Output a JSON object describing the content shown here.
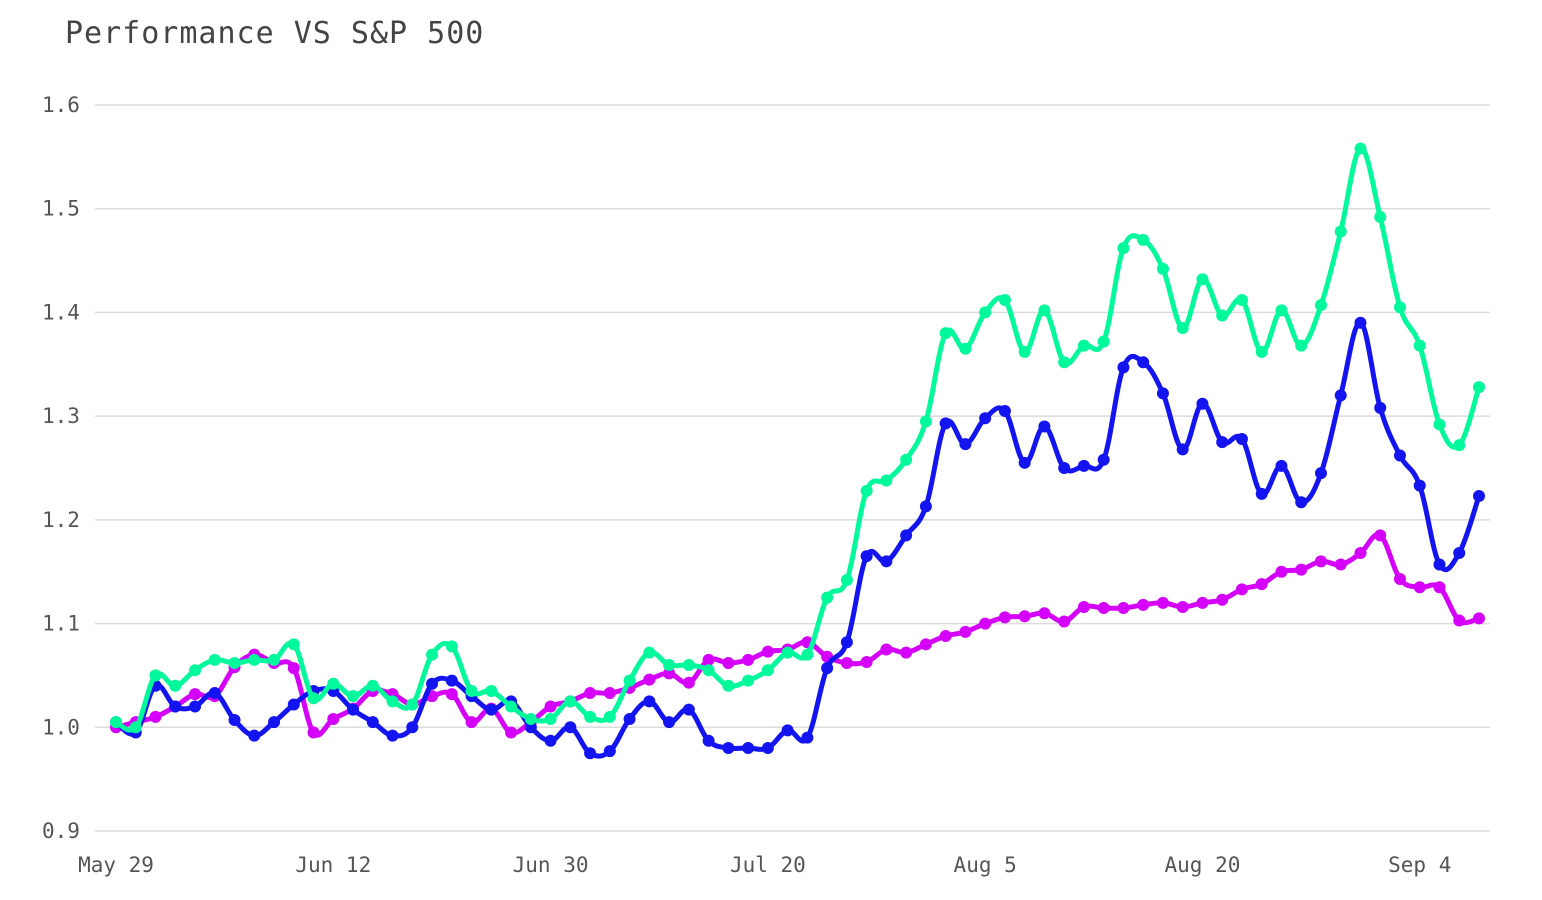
{
  "chart_data": {
    "type": "line",
    "title": "Performance VS S&P 500",
    "xlabel": "",
    "ylabel": "",
    "ylim": [
      0.9,
      1.6
    ],
    "yticks": [
      "0.9",
      "1.0",
      "1.1",
      "1.2",
      "1.3",
      "1.4",
      "1.5",
      "1.6"
    ],
    "xticks": [
      "May 29",
      "Jun 12",
      "Jun 30",
      "Jul 20",
      "Aug 5",
      "Aug 20",
      "Sep 4"
    ],
    "xtick_index": [
      0,
      11,
      22,
      33,
      44,
      55,
      66
    ],
    "grid": true,
    "legend": "none",
    "series": [
      {
        "color": "#00f99b",
        "values": [
          1.005,
          1.0,
          1.05,
          1.04,
          1.055,
          1.065,
          1.062,
          1.065,
          1.065,
          1.08,
          1.028,
          1.042,
          1.03,
          1.04,
          1.025,
          1.022,
          1.07,
          1.078,
          1.035,
          1.035,
          1.02,
          1.008,
          1.008,
          1.025,
          1.01,
          1.01,
          1.045,
          1.072,
          1.06,
          1.06,
          1.055,
          1.04,
          1.045,
          1.055,
          1.072,
          1.07,
          1.125,
          1.142,
          1.228,
          1.238,
          1.258,
          1.295,
          1.38,
          1.365,
          1.4,
          1.412,
          1.362,
          1.402,
          1.352,
          1.368,
          1.372,
          1.462,
          1.47,
          1.442,
          1.385,
          1.432,
          1.397,
          1.412,
          1.362,
          1.402,
          1.368,
          1.407,
          1.478,
          1.558,
          1.492,
          1.405,
          1.368,
          1.292,
          1.272,
          1.328
        ]
      },
      {
        "color": "#1414f0",
        "values": [
          1.005,
          0.995,
          1.04,
          1.02,
          1.02,
          1.033,
          1.007,
          0.992,
          1.005,
          1.022,
          1.035,
          1.035,
          1.017,
          1.005,
          0.992,
          1.0,
          1.042,
          1.045,
          1.03,
          1.017,
          1.025,
          1.0,
          0.987,
          1.0,
          0.975,
          0.977,
          1.008,
          1.025,
          1.005,
          1.017,
          0.987,
          0.98,
          0.98,
          0.98,
          0.997,
          0.99,
          1.057,
          1.082,
          1.165,
          1.16,
          1.185,
          1.213,
          1.293,
          1.273,
          1.298,
          1.305,
          1.255,
          1.29,
          1.25,
          1.252,
          1.258,
          1.347,
          1.352,
          1.322,
          1.268,
          1.312,
          1.275,
          1.278,
          1.225,
          1.252,
          1.217,
          1.245,
          1.32,
          1.39,
          1.308,
          1.262,
          1.233,
          1.157,
          1.168,
          1.223
        ]
      },
      {
        "color": "#d500f9",
        "values": [
          1.0,
          1.005,
          1.01,
          1.02,
          1.032,
          1.03,
          1.058,
          1.07,
          1.062,
          1.057,
          0.995,
          1.008,
          1.018,
          1.035,
          1.032,
          1.022,
          1.03,
          1.032,
          1.005,
          1.018,
          0.995,
          1.005,
          1.02,
          1.025,
          1.033,
          1.033,
          1.038,
          1.046,
          1.052,
          1.043,
          1.065,
          1.062,
          1.065,
          1.073,
          1.075,
          1.082,
          1.068,
          1.062,
          1.063,
          1.075,
          1.072,
          1.08,
          1.088,
          1.092,
          1.1,
          1.106,
          1.107,
          1.11,
          1.102,
          1.116,
          1.115,
          1.115,
          1.118,
          1.12,
          1.116,
          1.12,
          1.123,
          1.133,
          1.138,
          1.15,
          1.152,
          1.16,
          1.157,
          1.168,
          1.185,
          1.143,
          1.135,
          1.135,
          1.103,
          1.105
        ]
      }
    ]
  }
}
